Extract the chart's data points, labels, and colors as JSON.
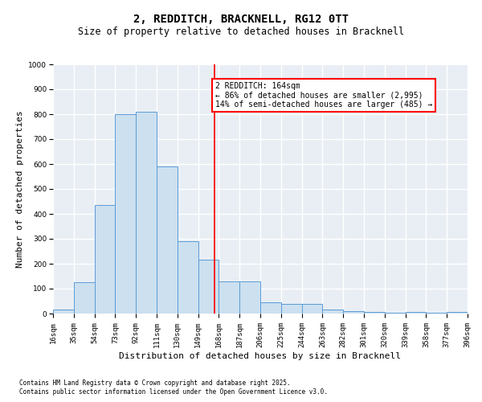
{
  "title": "2, REDDITCH, BRACKNELL, RG12 0TT",
  "subtitle": "Size of property relative to detached houses in Bracknell",
  "xlabel": "Distribution of detached houses by size in Bracknell",
  "ylabel": "Number of detached properties",
  "footer_line1": "Contains HM Land Registry data © Crown copyright and database right 2025.",
  "footer_line2": "Contains public sector information licensed under the Open Government Licence v3.0.",
  "bins": [
    16,
    35,
    54,
    73,
    92,
    111,
    130,
    149,
    168,
    187,
    206,
    225,
    244,
    263,
    282,
    301,
    320,
    339,
    358,
    377,
    396
  ],
  "bar_heights": [
    15,
    125,
    435,
    800,
    810,
    590,
    290,
    215,
    130,
    130,
    45,
    40,
    40,
    15,
    10,
    5,
    3,
    5,
    2,
    5
  ],
  "bar_color": "#cce0f0",
  "bar_edge_color": "#5b9bd5",
  "vline_x": 164,
  "vline_color": "red",
  "annotation_text": "2 REDDITCH: 164sqm\n← 86% of detached houses are smaller (2,995)\n14% of semi-detached houses are larger (485) →",
  "annotation_box_color": "red",
  "annotation_fill": "white",
  "ylim": [
    0,
    1000
  ],
  "yticks": [
    0,
    100,
    200,
    300,
    400,
    500,
    600,
    700,
    800,
    900,
    1000
  ],
  "bg_color": "#e8eef4",
  "grid_color": "white",
  "title_fontsize": 10,
  "subtitle_fontsize": 8.5,
  "axis_label_fontsize": 8,
  "tick_fontsize": 6.5,
  "annotation_fontsize": 7,
  "footer_fontsize": 5.5
}
